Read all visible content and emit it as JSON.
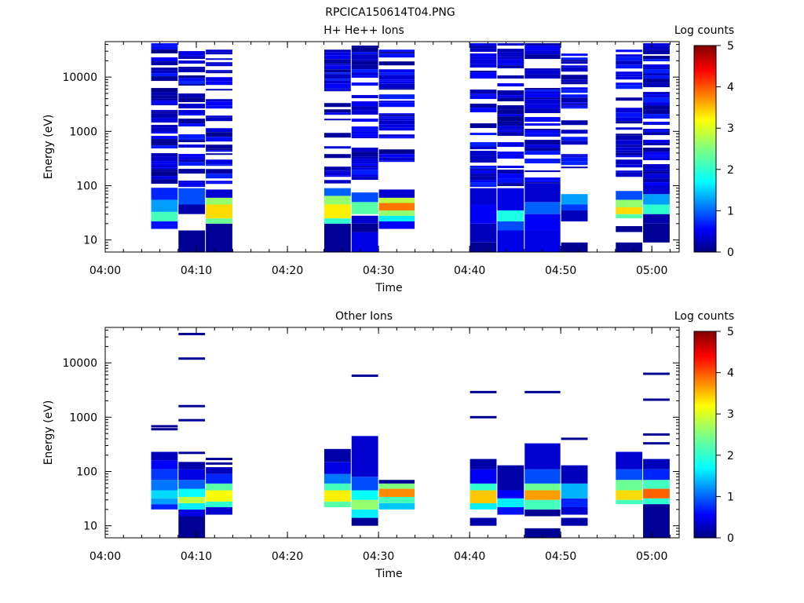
{
  "figure_title": "RPCICA150614T04.PNG",
  "colors": {
    "colormap": [
      "#000080",
      "#0000ff",
      "#0080ff",
      "#00ffff",
      "#80ff80",
      "#ffff00",
      "#ff8000",
      "#ff0000",
      "#800000"
    ]
  },
  "chart_data": [
    {
      "type": "heatmap",
      "title": "H+ He++ Ions",
      "xlabel": "Time",
      "ylabel": "Energy (eV)",
      "yscale": "log",
      "ylim": [
        6,
        45000
      ],
      "xlim": [
        "04:00",
        "05:03"
      ],
      "x_ticks": [
        "04:00",
        "04:10",
        "04:20",
        "04:30",
        "04:40",
        "04:50",
        "05:00"
      ],
      "y_ticks": [
        "10",
        "100",
        "1000",
        "10000"
      ],
      "colorbar": {
        "label": "Log counts",
        "range": [
          0,
          5
        ],
        "ticks": [
          "0",
          "1",
          "2",
          "3",
          "4",
          "5"
        ]
      },
      "columns": [
        {
          "start": "04:05",
          "end": "04:08",
          "low_energy_cells": [
            [
              16,
              22,
              0.7
            ],
            [
              22,
              33,
              2.2
            ],
            [
              33,
              55,
              1.4
            ],
            [
              55,
              90,
              0.8
            ]
          ],
          "high_energy_band": [
            90,
            42000
          ]
        },
        {
          "start": "04:08",
          "end": "04:11",
          "low_energy_cells": [
            [
              6,
              15,
              0.1
            ],
            [
              30,
              45,
              0.2
            ],
            [
              45,
              90,
              1.0
            ]
          ],
          "high_energy_band": [
            90,
            42000
          ]
        },
        {
          "start": "04:11",
          "end": "04:14",
          "low_energy_cells": [
            [
              6,
              20,
              0.1
            ],
            [
              20,
              25,
              2.4
            ],
            [
              25,
              45,
              3.3
            ],
            [
              45,
              60,
              2.6
            ],
            [
              60,
              85,
              0.4
            ]
          ],
          "high_energy_band": [
            100,
            32000
          ]
        },
        {
          "start": "04:24",
          "end": "04:27",
          "low_energy_cells": [
            [
              6,
              20,
              0.1
            ],
            [
              20,
              25,
              2.1
            ],
            [
              25,
              45,
              3.2
            ],
            [
              45,
              65,
              2.6
            ],
            [
              65,
              90,
              1.1
            ]
          ],
          "high_energy_band": [
            110,
            32000
          ]
        },
        {
          "start": "04:27",
          "end": "04:30",
          "low_energy_cells": [
            [
              6,
              14,
              0.5
            ],
            [
              14,
              20,
              0.1
            ],
            [
              20,
              28,
              0.4
            ],
            [
              30,
              50,
              2.3
            ],
            [
              50,
              75,
              1.0
            ]
          ],
          "high_energy_band": [
            110,
            42000
          ]
        },
        {
          "start": "04:30",
          "end": "04:34",
          "low_energy_cells": [
            [
              16,
              22,
              0.6
            ],
            [
              22,
              28,
              1.8
            ],
            [
              28,
              35,
              2.6
            ],
            [
              35,
              48,
              3.8
            ],
            [
              48,
              60,
              2.8
            ],
            [
              60,
              85,
              0.4
            ]
          ],
          "high_energy_band": [
            250,
            32000
          ]
        },
        {
          "start": "04:40",
          "end": "04:43",
          "low_energy_cells": [
            [
              6,
              9,
              0.1
            ],
            [
              9,
              20,
              0.3
            ],
            [
              20,
              45,
              0.6
            ],
            [
              45,
              90,
              0.4
            ]
          ],
          "high_energy_band": [
            90,
            42000
          ]
        },
        {
          "start": "04:43",
          "end": "04:46",
          "low_energy_cells": [
            [
              6,
              15,
              0.5
            ],
            [
              15,
              22,
              1.0
            ],
            [
              22,
              35,
              2.0
            ],
            [
              35,
              90,
              0.5
            ]
          ],
          "high_energy_band": [
            90,
            42000
          ]
        },
        {
          "start": "04:46",
          "end": "04:50",
          "low_energy_cells": [
            [
              6,
              15,
              0.5
            ],
            [
              15,
              30,
              0.6
            ],
            [
              30,
              50,
              1.1
            ],
            [
              50,
              110,
              0.4
            ]
          ],
          "high_energy_band": [
            110,
            42000
          ]
        },
        {
          "start": "04:50",
          "end": "04:53",
          "low_energy_cells": [
            [
              6,
              9,
              0.1
            ],
            [
              22,
              35,
              0.3
            ],
            [
              35,
              45,
              0.9
            ],
            [
              45,
              70,
              1.4
            ]
          ],
          "high_energy_band": [
            200,
            32000
          ]
        },
        {
          "start": "04:56",
          "end": "04:59",
          "low_energy_cells": [
            [
              6,
              9,
              0.1
            ],
            [
              14,
              18,
              0.1
            ],
            [
              25,
              30,
              2.3
            ],
            [
              30,
              40,
              3.3
            ],
            [
              40,
              55,
              2.6
            ],
            [
              55,
              80,
              1.0
            ]
          ],
          "high_energy_band": [
            140,
            32000
          ]
        },
        {
          "start": "04:59",
          "end": "05:02",
          "low_energy_cells": [
            [
              9,
              20,
              0.1
            ],
            [
              20,
              30,
              0.2
            ],
            [
              30,
              45,
              2.1
            ],
            [
              45,
              70,
              1.4
            ],
            [
              70,
              100,
              0.4
            ]
          ],
          "high_energy_band": [
            100,
            42000
          ]
        }
      ]
    },
    {
      "type": "heatmap",
      "title": "Other Ions",
      "xlabel": "Time",
      "ylabel": "Energy (eV)",
      "yscale": "log",
      "ylim": [
        6,
        45000
      ],
      "xlim": [
        "04:00",
        "05:03"
      ],
      "x_ticks": [
        "04:00",
        "04:10",
        "04:20",
        "04:30",
        "04:40",
        "04:50",
        "05:00"
      ],
      "y_ticks": [
        "10",
        "100",
        "1000",
        "10000"
      ],
      "colorbar": {
        "label": "Log counts",
        "range": [
          0,
          5
        ],
        "ticks": [
          "0",
          "1",
          "2",
          "3",
          "4",
          "5"
        ]
      },
      "columns": [
        {
          "start": "04:05",
          "end": "04:08",
          "cells": [
            [
              20,
              25,
              0.8
            ],
            [
              25,
              32,
              1.4
            ],
            [
              32,
              45,
              1.7
            ],
            [
              45,
              70,
              1.2
            ],
            [
              70,
              110,
              0.9
            ],
            [
              110,
              160,
              0.6
            ],
            [
              160,
              230,
              0.3
            ]
          ],
          "isolated_lines": [
            600,
            680
          ]
        },
        {
          "start": "04:08",
          "end": "04:11",
          "cells": [
            [
              6,
              15,
              0.1
            ],
            [
              15,
              20,
              0.5
            ],
            [
              20,
              26,
              1.8
            ],
            [
              26,
              34,
              2.8
            ],
            [
              34,
              48,
              1.9
            ],
            [
              48,
              70,
              1.1
            ],
            [
              70,
              110,
              0.5
            ],
            [
              110,
              150,
              0.2
            ]
          ],
          "isolated_lines": [
            220,
            880,
            1600,
            12000,
            34000
          ]
        },
        {
          "start": "04:11",
          "end": "04:14",
          "cells": [
            [
              16,
              22,
              0.4
            ],
            [
              22,
              28,
              2.1
            ],
            [
              28,
              45,
              3.1
            ],
            [
              45,
              60,
              2.3
            ],
            [
              60,
              90,
              0.8
            ],
            [
              90,
              120,
              0.3
            ]
          ],
          "isolated_lines": [
            140,
            170
          ]
        },
        {
          "start": "04:24",
          "end": "04:27",
          "cells": [
            [
              22,
              28,
              2.3
            ],
            [
              28,
              45,
              3.2
            ],
            [
              45,
              60,
              2.2
            ],
            [
              60,
              90,
              1.2
            ],
            [
              90,
              150,
              0.5
            ],
            [
              150,
              260,
              0.2
            ]
          ],
          "isolated_lines": []
        },
        {
          "start": "04:27",
          "end": "04:30",
          "cells": [
            [
              10,
              14,
              0.1
            ],
            [
              14,
              20,
              1.8
            ],
            [
              20,
              30,
              2.6
            ],
            [
              30,
              45,
              1.9
            ],
            [
              45,
              80,
              1.0
            ],
            [
              80,
              450,
              0.4
            ]
          ],
          "isolated_lines": [
            5800
          ]
        },
        {
          "start": "04:30",
          "end": "04:34",
          "cells": [
            [
              20,
              26,
              1.6
            ],
            [
              26,
              34,
              2.2
            ],
            [
              34,
              48,
              3.7
            ],
            [
              48,
              60,
              2.5
            ],
            [
              60,
              70,
              0.1
            ]
          ],
          "isolated_lines": []
        },
        {
          "start": "04:40",
          "end": "04:43",
          "cells": [
            [
              10,
              14,
              0.2
            ],
            [
              20,
              26,
              1.8
            ],
            [
              26,
              45,
              3.4
            ],
            [
              45,
              60,
              2.1
            ],
            [
              60,
              110,
              0.6
            ],
            [
              110,
              170,
              0.2
            ]
          ],
          "isolated_lines": [
            1000,
            2900
          ]
        },
        {
          "start": "04:43",
          "end": "04:46",
          "cells": [
            [
              16,
              22,
              0.7
            ],
            [
              22,
              32,
              1.8
            ],
            [
              32,
              45,
              0.6
            ],
            [
              45,
              130,
              0.2
            ]
          ],
          "isolated_lines": []
        },
        {
          "start": "04:46",
          "end": "04:50",
          "cells": [
            [
              6,
              9,
              0.1
            ],
            [
              15,
              20,
              0.1
            ],
            [
              20,
              30,
              2.2
            ],
            [
              30,
              45,
              3.6
            ],
            [
              45,
              60,
              2.4
            ],
            [
              60,
              110,
              1.0
            ],
            [
              110,
              330,
              0.4
            ]
          ],
          "isolated_lines": [
            2900
          ]
        },
        {
          "start": "04:50",
          "end": "04:53",
          "cells": [
            [
              10,
              14,
              0.2
            ],
            [
              16,
              22,
              0.4
            ],
            [
              22,
              32,
              0.8
            ],
            [
              32,
              60,
              1.5
            ],
            [
              60,
              130,
              0.3
            ]
          ],
          "isolated_lines": [
            400
          ]
        },
        {
          "start": "04:56",
          "end": "04:59",
          "cells": [
            [
              25,
              30,
              2.2
            ],
            [
              30,
              45,
              3.3
            ],
            [
              45,
              70,
              2.4
            ],
            [
              70,
              110,
              1.0
            ],
            [
              110,
              230,
              0.4
            ]
          ],
          "isolated_lines": []
        },
        {
          "start": "04:59",
          "end": "05:02",
          "cells": [
            [
              6,
              25,
              0.1
            ],
            [
              25,
              32,
              2.1
            ],
            [
              32,
              48,
              3.9
            ],
            [
              48,
              70,
              2.2
            ],
            [
              70,
              110,
              0.8
            ],
            [
              110,
              170,
              0.3
            ]
          ],
          "isolated_lines": [
            330,
            480,
            2100,
            6300
          ]
        }
      ]
    }
  ]
}
